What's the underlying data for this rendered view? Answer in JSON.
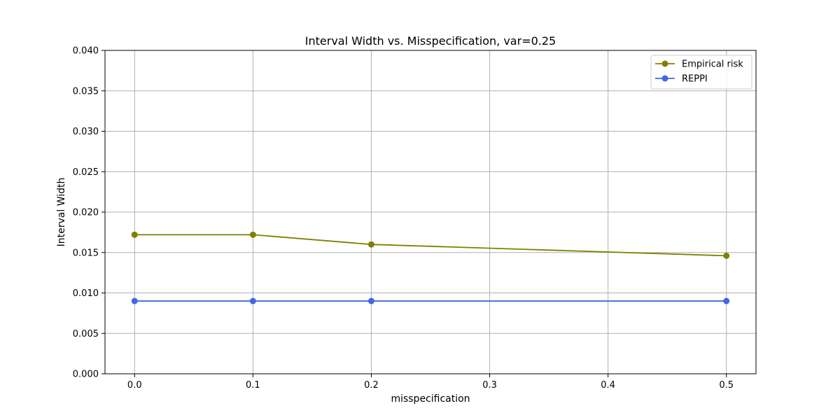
{
  "chart_data": {
    "type": "line",
    "title": "Interval Width vs. Misspecification, var=0.25",
    "xlabel": "misspecification",
    "ylabel": "Interval Width",
    "x": [
      0.0,
      0.1,
      0.2,
      0.5
    ],
    "xlim": [
      -0.025,
      0.525
    ],
    "ylim": [
      0.0,
      0.04
    ],
    "xticks": [
      0.0,
      0.1,
      0.2,
      0.3,
      0.4,
      0.5
    ],
    "xtick_labels": [
      "0.0",
      "0.1",
      "0.2",
      "0.3",
      "0.4",
      "0.5"
    ],
    "yticks": [
      0.0,
      0.005,
      0.01,
      0.015,
      0.02,
      0.025,
      0.03,
      0.035,
      0.04
    ],
    "ytick_labels": [
      "0.000",
      "0.005",
      "0.010",
      "0.015",
      "0.020",
      "0.025",
      "0.030",
      "0.035",
      "0.040"
    ],
    "grid": true,
    "legend_position": "top-right",
    "series": [
      {
        "name": "Empirical risk",
        "color": "#808000",
        "values": [
          0.0172,
          0.0172,
          0.016,
          0.0146
        ]
      },
      {
        "name": "REPPI",
        "color": "#4169e1",
        "values": [
          0.009,
          0.009,
          0.009,
          0.009
        ]
      }
    ]
  }
}
